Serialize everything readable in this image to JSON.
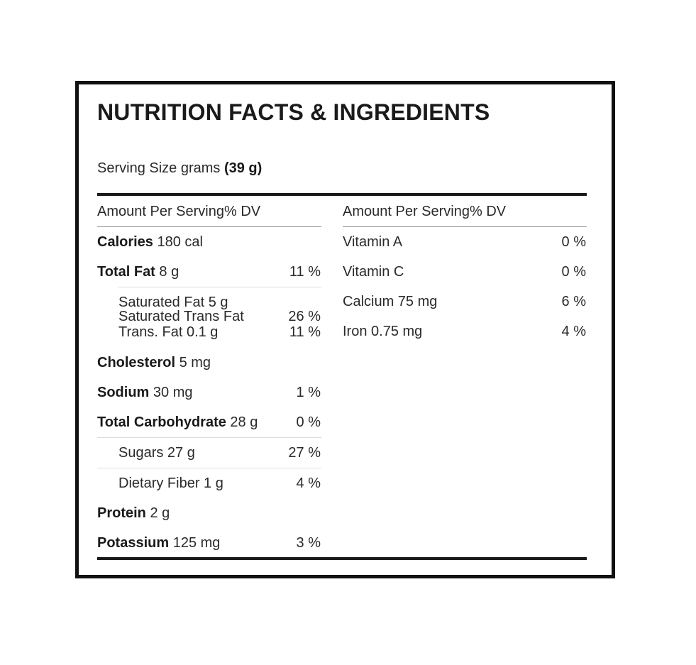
{
  "title": "NUTRITION FACTS & INGREDIENTS",
  "serving": {
    "label": "Serving Size grams",
    "value": "(39 g)"
  },
  "left_header": "Amount Per Serving% DV",
  "right_header": "Amount Per Serving% DV",
  "left": {
    "calories": {
      "name": "Calories",
      "amount": " 180 cal"
    },
    "total_fat": {
      "name": "Total Fat",
      "amount": " 8 g",
      "dv": "11 %"
    },
    "saturated_fat": {
      "text": "Saturated Fat 5 g"
    },
    "saturated_trans_fat": {
      "text": "Saturated Trans Fat",
      "dv": "26 %"
    },
    "trans_fat": {
      "text": "Trans. Fat 0.1 g",
      "dv": "11 %"
    },
    "cholesterol": {
      "name": "Cholesterol",
      "amount": " 5 mg"
    },
    "sodium": {
      "name": "Sodium",
      "amount": " 30 mg",
      "dv": "1 %"
    },
    "total_carbohydrate": {
      "name": "Total Carbohydrate",
      "amount": " 28 g",
      "dv": "0 %"
    },
    "sugars": {
      "text": "Sugars 27 g",
      "dv": "27 %"
    },
    "dietary_fiber": {
      "text": "Dietary Fiber 1 g",
      "dv": "4 %"
    },
    "protein": {
      "name": "Protein",
      "amount": " 2 g"
    },
    "potassium": {
      "name": "Potassium",
      "amount": " 125 mg",
      "dv": "3 %"
    }
  },
  "right": {
    "vitamin_a": {
      "text": "Vitamin A",
      "dv": "0 %"
    },
    "vitamin_c": {
      "text": "Vitamin C",
      "dv": "0 %"
    },
    "calcium": {
      "text": "Calcium 75 mg",
      "dv": "6 %"
    },
    "iron": {
      "text": "Iron 0.75 mg",
      "dv": "4 %"
    }
  }
}
